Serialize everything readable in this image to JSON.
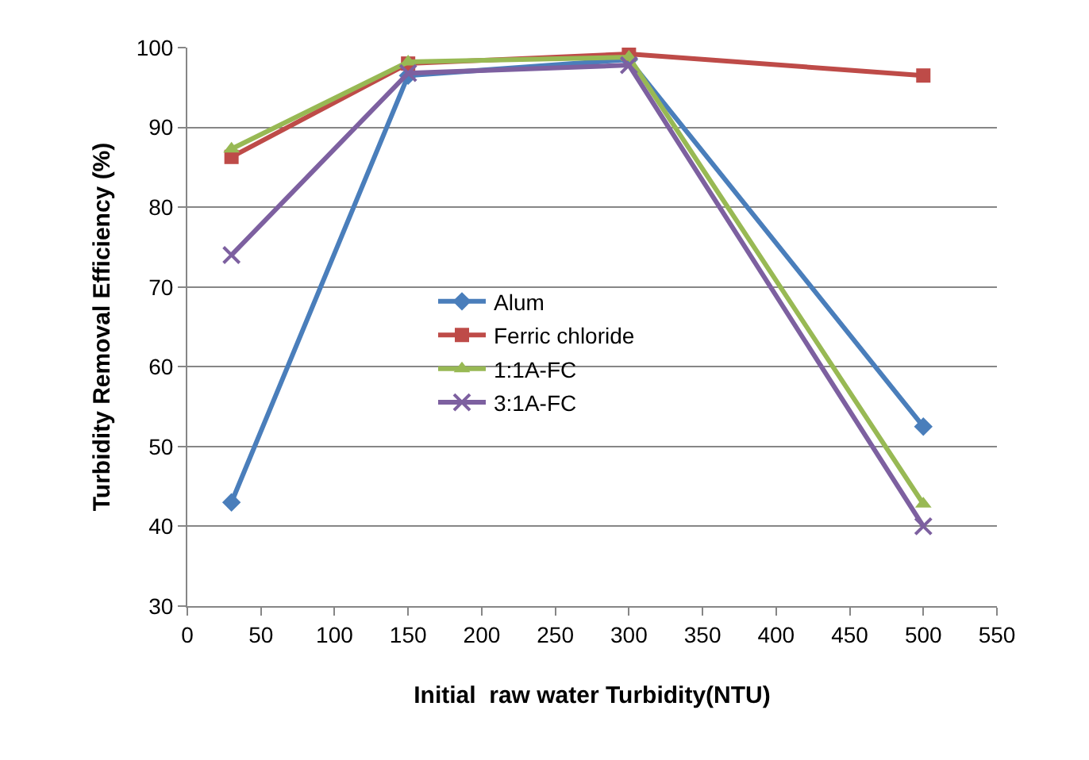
{
  "chart_data": {
    "type": "line",
    "xlabel": "Initial  raw water Turbidity(NTU)",
    "ylabel": "Turbidity Removal Efficiency (%)",
    "x": [
      30,
      150,
      300,
      500
    ],
    "series": [
      {
        "name": "Alum",
        "color": "#4a7ebb",
        "marker": "diamond",
        "values": [
          43,
          96.5,
          98.5,
          52.5
        ]
      },
      {
        "name": "Ferric chloride",
        "color": "#be4b48",
        "marker": "square",
        "values": [
          86.3,
          98,
          99.2,
          96.5
        ]
      },
      {
        "name": "1:1A-FC",
        "color": "#98b954",
        "marker": "triangle",
        "values": [
          87.3,
          98.2,
          98.8,
          42.8
        ]
      },
      {
        "name": "3:1A-FC",
        "color": "#7d60a0",
        "marker": "cross",
        "values": [
          74,
          96.8,
          97.8,
          40
        ]
      }
    ],
    "xlim": [
      0,
      550
    ],
    "xticks": [
      0,
      50,
      100,
      150,
      200,
      250,
      300,
      350,
      400,
      450,
      500,
      550
    ],
    "ylim": [
      30,
      100
    ],
    "yticks": [
      30,
      40,
      50,
      60,
      70,
      80,
      90,
      100
    ],
    "grid": "y",
    "legend": "left",
    "line_style": "solid"
  }
}
